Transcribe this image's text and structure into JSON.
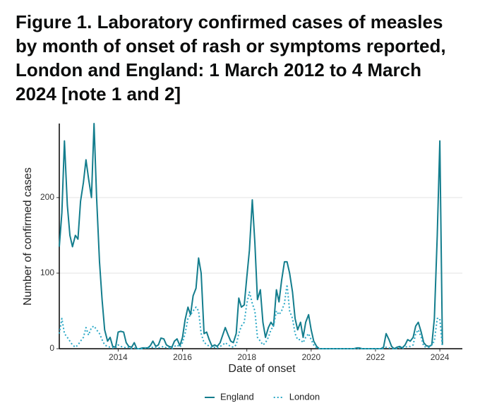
{
  "chart_data": {
    "type": "line",
    "title": "Figure 1. Laboratory confirmed cases of measles by month of onset of rash or symptoms reported, London and England: 1 March 2012 to 4 March 2024 [note 1 and 2]",
    "x_label": "Date of onset",
    "y_label": "Number of confirmed cases",
    "x": [
      2012.17,
      2012.25,
      2012.33,
      2012.42,
      2012.5,
      2012.58,
      2012.67,
      2012.75,
      2012.83,
      2012.92,
      2013.0,
      2013.08,
      2013.17,
      2013.25,
      2013.33,
      2013.42,
      2013.5,
      2013.58,
      2013.67,
      2013.75,
      2013.83,
      2013.92,
      2014.0,
      2014.08,
      2014.17,
      2014.25,
      2014.33,
      2014.42,
      2014.5,
      2014.58,
      2014.67,
      2014.75,
      2014.83,
      2014.92,
      2015.0,
      2015.08,
      2015.17,
      2015.25,
      2015.33,
      2015.42,
      2015.5,
      2015.58,
      2015.67,
      2015.75,
      2015.83,
      2015.92,
      2016.0,
      2016.08,
      2016.17,
      2016.25,
      2016.33,
      2016.42,
      2016.5,
      2016.58,
      2016.67,
      2016.75,
      2016.83,
      2016.92,
      2017.0,
      2017.08,
      2017.17,
      2017.25,
      2017.33,
      2017.42,
      2017.5,
      2017.58,
      2017.67,
      2017.75,
      2017.83,
      2017.92,
      2018.0,
      2018.08,
      2018.17,
      2018.25,
      2018.33,
      2018.42,
      2018.5,
      2018.58,
      2018.67,
      2018.75,
      2018.83,
      2018.92,
      2019.0,
      2019.08,
      2019.17,
      2019.25,
      2019.33,
      2019.42,
      2019.5,
      2019.58,
      2019.67,
      2019.75,
      2019.83,
      2019.92,
      2020.0,
      2020.08,
      2020.17,
      2020.25,
      2020.33,
      2020.42,
      2020.5,
      2020.58,
      2020.67,
      2020.75,
      2020.83,
      2020.92,
      2021.0,
      2021.08,
      2021.17,
      2021.25,
      2021.33,
      2021.42,
      2021.5,
      2021.58,
      2021.67,
      2021.75,
      2021.83,
      2021.92,
      2022.0,
      2022.08,
      2022.17,
      2022.25,
      2022.33,
      2022.42,
      2022.5,
      2022.58,
      2022.67,
      2022.75,
      2022.83,
      2022.92,
      2023.0,
      2023.08,
      2023.17,
      2023.25,
      2023.33,
      2023.42,
      2023.5,
      2023.58,
      2023.67,
      2023.75,
      2023.83,
      2023.92,
      2024.0,
      2024.08
    ],
    "series": [
      {
        "name": "England",
        "color": "#137d8d",
        "dash": "solid",
        "values": [
          135,
          180,
          275,
          190,
          150,
          135,
          150,
          145,
          195,
          220,
          250,
          225,
          200,
          298,
          200,
          115,
          65,
          25,
          10,
          15,
          3,
          2,
          22,
          23,
          22,
          8,
          3,
          2,
          8,
          0,
          0,
          1,
          1,
          1,
          4,
          10,
          3,
          5,
          14,
          13,
          5,
          3,
          2,
          10,
          13,
          4,
          15,
          38,
          55,
          45,
          70,
          80,
          120,
          100,
          20,
          22,
          12,
          3,
          5,
          3,
          8,
          18,
          28,
          18,
          10,
          8,
          20,
          67,
          55,
          58,
          95,
          130,
          197,
          140,
          65,
          78,
          35,
          15,
          28,
          35,
          30,
          78,
          62,
          90,
          115,
          115,
          100,
          75,
          40,
          25,
          35,
          15,
          35,
          45,
          25,
          10,
          3,
          0,
          0,
          0,
          0,
          0,
          0,
          0,
          0,
          0,
          0,
          0,
          0,
          0,
          0,
          1,
          1,
          0,
          0,
          0,
          0,
          0,
          0,
          0,
          0,
          2,
          20,
          12,
          3,
          0,
          2,
          3,
          1,
          5,
          12,
          10,
          15,
          30,
          35,
          22,
          8,
          4,
          3,
          5,
          40,
          150,
          275,
          5
        ]
      },
      {
        "name": "London",
        "color": "#2aa8c6",
        "dash": "dotted",
        "values": [
          20,
          40,
          20,
          15,
          10,
          5,
          2,
          5,
          10,
          15,
          28,
          18,
          28,
          30,
          25,
          20,
          12,
          5,
          3,
          2,
          1,
          1,
          5,
          3,
          2,
          1,
          2,
          0,
          1,
          0,
          0,
          0,
          1,
          1,
          1,
          2,
          1,
          1,
          2,
          3,
          1,
          1,
          0,
          3,
          5,
          2,
          8,
          20,
          40,
          45,
          50,
          55,
          50,
          20,
          8,
          6,
          3,
          1,
          2,
          1,
          3,
          5,
          8,
          5,
          3,
          2,
          5,
          20,
          30,
          35,
          60,
          75,
          60,
          50,
          15,
          10,
          5,
          8,
          15,
          25,
          30,
          50,
          45,
          50,
          60,
          85,
          50,
          40,
          20,
          12,
          12,
          8,
          15,
          20,
          12,
          5,
          1,
          0,
          0,
          0,
          0,
          0,
          0,
          0,
          0,
          0,
          0,
          0,
          0,
          0,
          0,
          0,
          0,
          0,
          0,
          0,
          0,
          0,
          0,
          0,
          0,
          0,
          2,
          1,
          0,
          0,
          0,
          1,
          0,
          2,
          3,
          3,
          5,
          20,
          25,
          15,
          3,
          2,
          2,
          5,
          10,
          40,
          40,
          2
        ]
      }
    ],
    "xlim": [
      2012.17,
      2024.7
    ],
    "ylim": [
      0,
      298
    ],
    "xticks": [
      2014,
      2016,
      2018,
      2020,
      2022,
      2024
    ],
    "yticks": [
      0,
      100,
      200
    ],
    "grid": true,
    "legend": "bottom"
  }
}
